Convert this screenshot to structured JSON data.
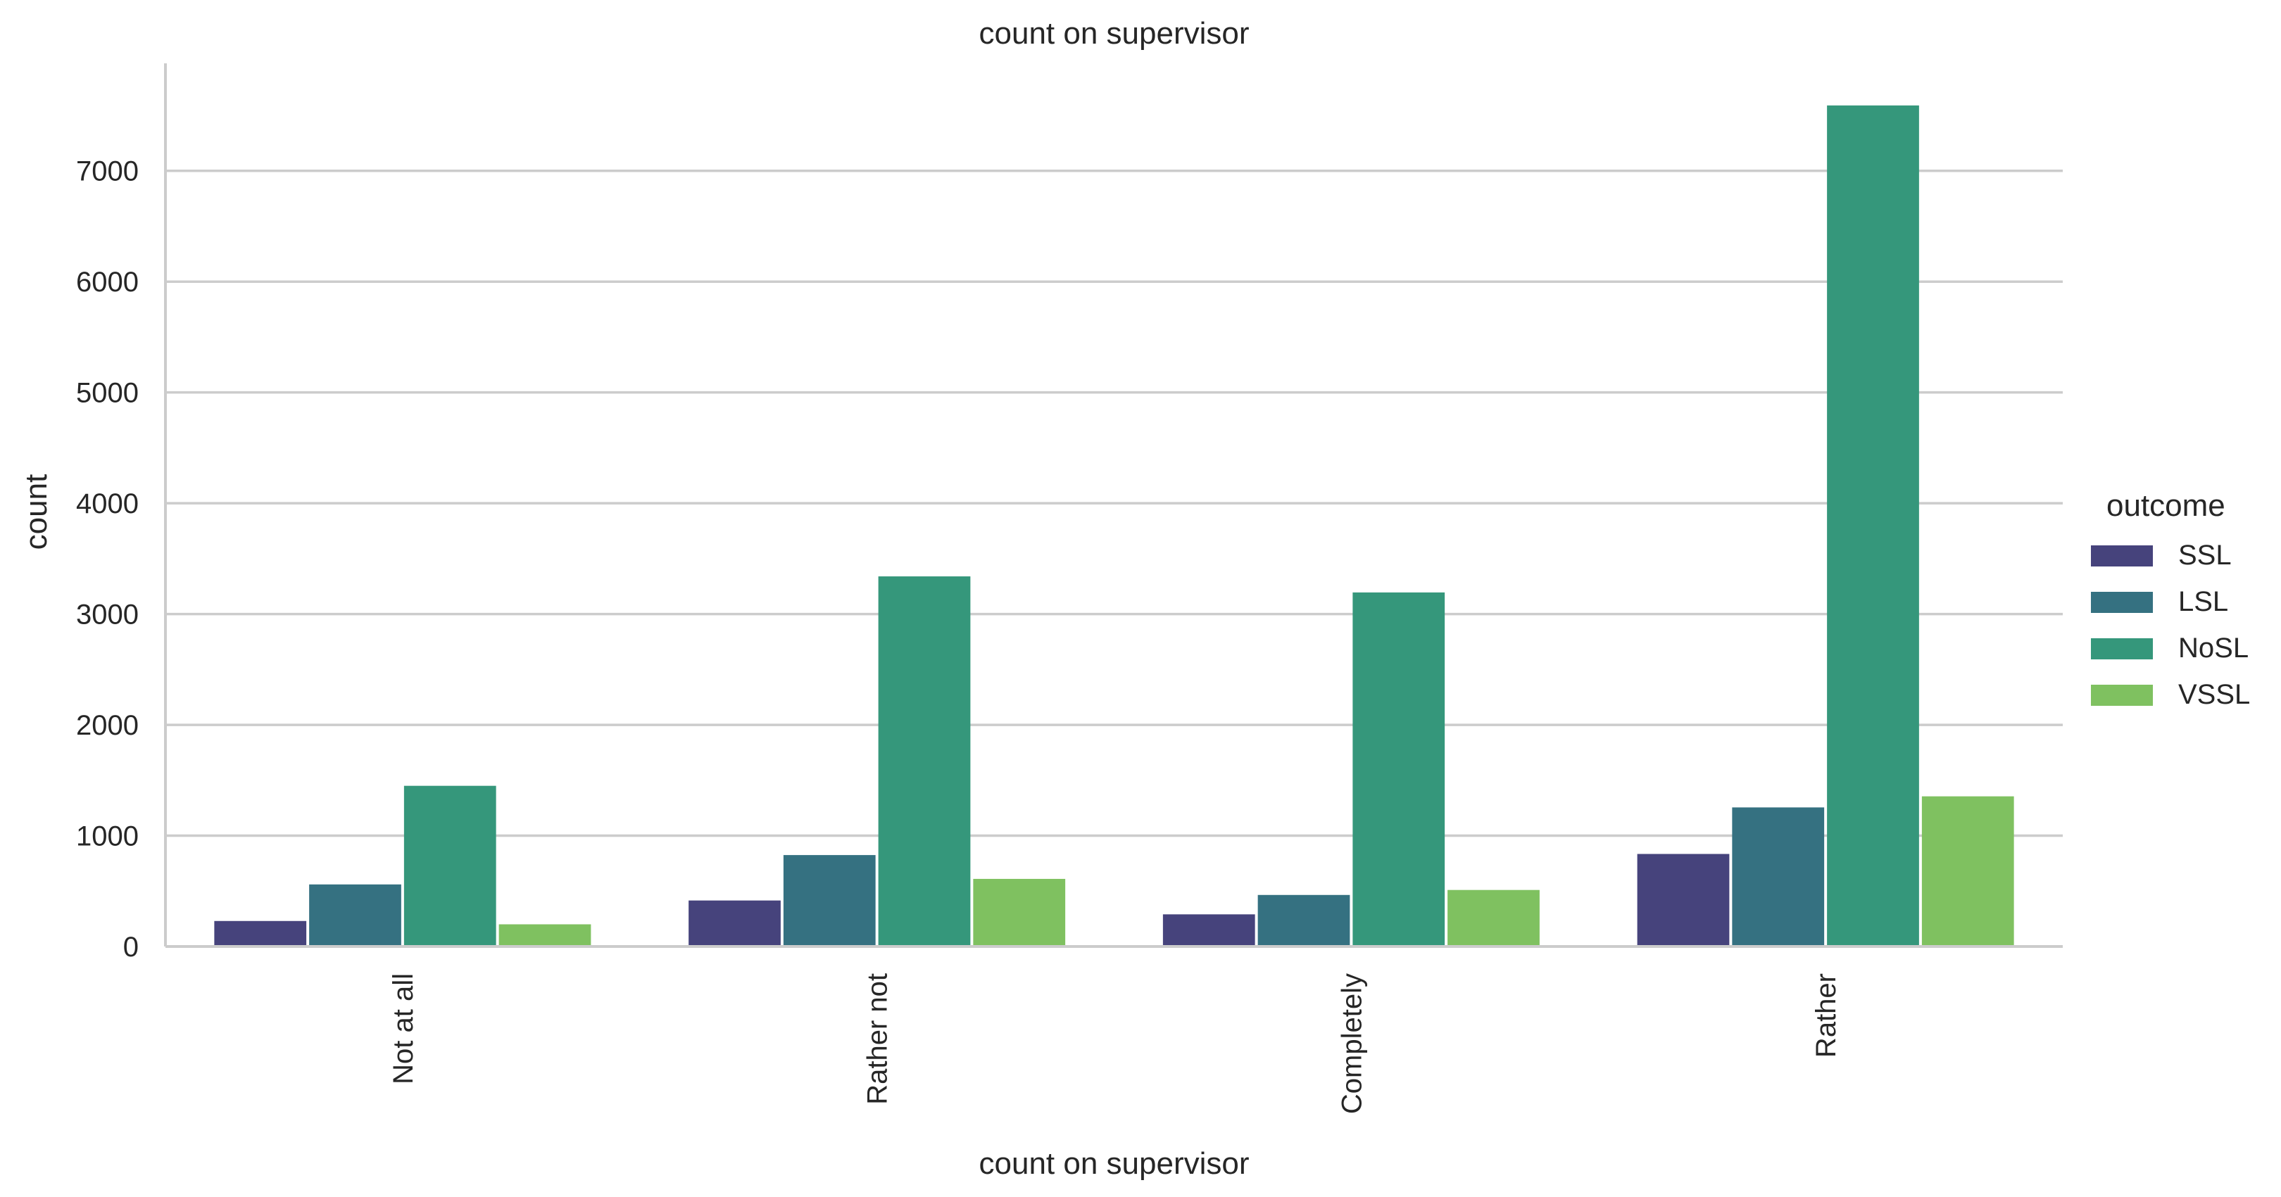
{
  "chart_data": {
    "type": "bar",
    "title": "count on supervisor",
    "xlabel": "count on supervisor",
    "ylabel": "count",
    "categories": [
      "Not at all",
      "Rather not",
      "Completely",
      "Rather"
    ],
    "series": [
      {
        "name": "SSL",
        "color": "#46437c",
        "values": [
          230,
          415,
          290,
          835
        ]
      },
      {
        "name": "LSL",
        "color": "#357181",
        "values": [
          560,
          825,
          465,
          1255
        ]
      },
      {
        "name": "NoSL",
        "color": "#35977b",
        "values": [
          1450,
          3340,
          3195,
          7590
        ]
      },
      {
        "name": "VSSL",
        "color": "#7fc160",
        "values": [
          200,
          610,
          510,
          1355
        ]
      }
    ],
    "yticks": [
      0,
      1000,
      2000,
      3000,
      4000,
      5000,
      6000,
      7000
    ],
    "ylim": [
      0,
      7970
    ],
    "legend_title": "outcome",
    "legend_position": "right",
    "grid": "horizontal",
    "gridline_color": "#cccccc",
    "axis_color": "#cccccc"
  }
}
